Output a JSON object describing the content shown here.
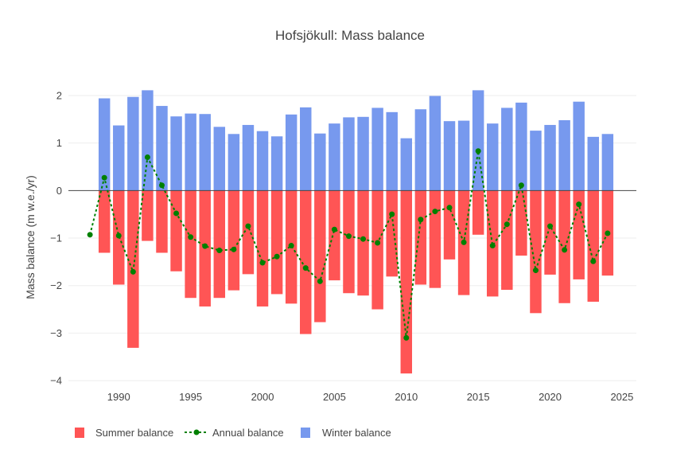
{
  "chart_data": {
    "type": "bar",
    "title": "Hofsjökull: Mass balance",
    "xlabel": "",
    "ylabel": "Mass balance (m w.e./yr)",
    "ylim": [
      -4.2,
      2.2
    ],
    "xlim": [
      1986.5,
      2026
    ],
    "yticks": [
      -4,
      -3,
      -2,
      -1,
      0,
      1,
      2
    ],
    "ytick_labels": [
      "−4",
      "−3",
      "−2",
      "−1",
      "0",
      "1",
      "2"
    ],
    "xticks": [
      1990,
      1995,
      2000,
      2005,
      2010,
      2015,
      2020,
      2025
    ],
    "xtick_labels": [
      "1990",
      "1995",
      "2000",
      "2005",
      "2010",
      "2015",
      "2020",
      "2025"
    ],
    "grid": true,
    "legend_position": "bottom-left",
    "colors": {
      "summer": "#ff5555",
      "winter": "#7799ee",
      "annual": "#008000"
    },
    "series": [
      {
        "name": "Summer balance",
        "kind": "bar",
        "years": [
          1989,
          1990,
          1991,
          1992,
          1993,
          1994,
          1995,
          1996,
          1997,
          1998,
          1999,
          2000,
          2001,
          2002,
          2003,
          2004,
          2005,
          2006,
          2007,
          2008,
          2009,
          2010,
          2011,
          2012,
          2013,
          2014,
          2015,
          2016,
          2017,
          2018,
          2019,
          2020,
          2021,
          2022,
          2023,
          2024
        ],
        "values": [
          -1.31,
          -1.98,
          -3.31,
          -1.06,
          -1.31,
          -1.7,
          -2.26,
          -2.44,
          -2.26,
          -2.1,
          -1.76,
          -2.44,
          -2.18,
          -2.38,
          -3.02,
          -2.77,
          -1.89,
          -2.16,
          -2.21,
          -2.5,
          -1.81,
          -3.85,
          -1.98,
          -2.05,
          -1.45,
          -2.2,
          -0.93,
          -2.23,
          -2.09,
          -1.37,
          -2.58,
          -1.77,
          -2.37,
          -1.87,
          -2.34,
          -1.79
        ]
      },
      {
        "name": "Annual balance",
        "kind": "line",
        "years": [
          1988,
          1989,
          1990,
          1991,
          1992,
          1993,
          1994,
          1995,
          1996,
          1997,
          1998,
          1999,
          2000,
          2001,
          2002,
          2003,
          2004,
          2005,
          2006,
          2007,
          2008,
          2009,
          2010,
          2011,
          2012,
          2013,
          2014,
          2015,
          2016,
          2017,
          2018,
          2019,
          2020,
          2021,
          2022,
          2023,
          2024
        ],
        "values": [
          -0.93,
          0.27,
          -0.95,
          -1.71,
          0.7,
          0.11,
          -0.48,
          -0.98,
          -1.17,
          -1.26,
          -1.24,
          -0.75,
          -1.52,
          -1.39,
          -1.16,
          -1.63,
          -1.91,
          -0.82,
          -0.96,
          -1.02,
          -1.1,
          -0.5,
          -3.1,
          -0.61,
          -0.44,
          -0.36,
          -1.09,
          0.83,
          -1.16,
          -0.71,
          0.11,
          -1.68,
          -0.75,
          -1.25,
          -0.29,
          -1.49,
          -0.9
        ]
      },
      {
        "name": "Winter balance",
        "kind": "bar",
        "years": [
          1989,
          1990,
          1991,
          1992,
          1993,
          1994,
          1995,
          1996,
          1997,
          1998,
          1999,
          2000,
          2001,
          2002,
          2003,
          2004,
          2005,
          2006,
          2007,
          2008,
          2009,
          2010,
          2011,
          2012,
          2013,
          2014,
          2015,
          2016,
          2017,
          2018,
          2019,
          2020,
          2021,
          2022,
          2023,
          2024
        ],
        "values": [
          1.94,
          1.37,
          1.97,
          2.11,
          1.78,
          1.56,
          1.62,
          1.61,
          1.34,
          1.19,
          1.38,
          1.25,
          1.14,
          1.6,
          1.75,
          1.2,
          1.41,
          1.54,
          1.55,
          1.74,
          1.65,
          1.1,
          1.71,
          1.99,
          1.46,
          1.47,
          2.11,
          1.41,
          1.74,
          1.85,
          1.26,
          1.38,
          1.48,
          1.87,
          1.13,
          1.19
        ]
      }
    ]
  }
}
